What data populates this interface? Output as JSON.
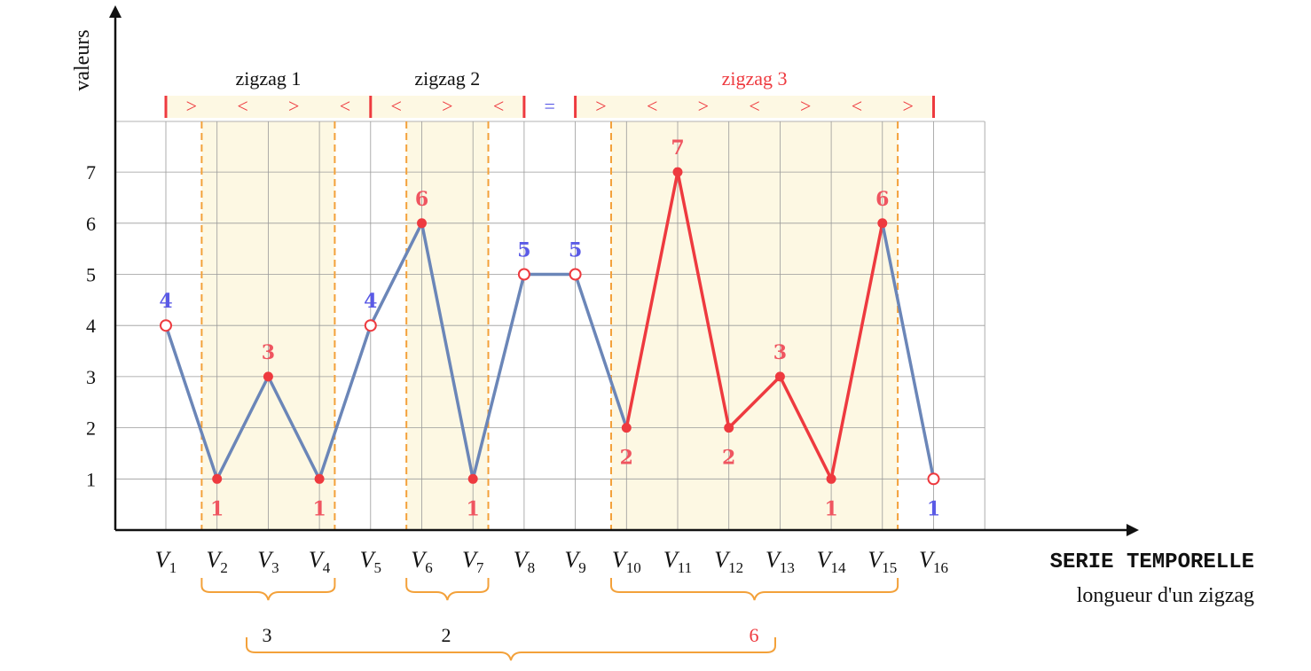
{
  "axis": {
    "y_label": "valeurs",
    "x_label": "SERIE TEMPORELLE",
    "x_sublabel": "longueur d'un zigzag",
    "y_ticks": [
      "1",
      "2",
      "3",
      "4",
      "5",
      "6",
      "7"
    ]
  },
  "colors": {
    "series_blue": "#6b86b8",
    "series_red": "#ee3a3f",
    "value_blue": "#5a5ae6",
    "value_red": "#ef5560",
    "band": "#fdf8e3",
    "dashed": "#f3a13a",
    "brace": "#f3a13a",
    "grid": "#9a9a9a"
  },
  "chart_data": {
    "type": "line",
    "x": [
      "V1",
      "V2",
      "V3",
      "V4",
      "V5",
      "V6",
      "V7",
      "V8",
      "V9",
      "V10",
      "V11",
      "V12",
      "V13",
      "V14",
      "V15",
      "V16"
    ],
    "series": [
      {
        "values": [
          4,
          1,
          3,
          1,
          4,
          6,
          1,
          5,
          5,
          2,
          7,
          2,
          3,
          1,
          6,
          1
        ]
      }
    ],
    "ylim": [
      0,
      7.7
    ],
    "grid": true,
    "value_labels": [
      {
        "index": 0,
        "text": "4",
        "color": "blue",
        "pos": "above"
      },
      {
        "index": 1,
        "text": "1",
        "color": "red",
        "pos": "below"
      },
      {
        "index": 2,
        "text": "3",
        "color": "red",
        "pos": "above"
      },
      {
        "index": 3,
        "text": "1",
        "color": "red",
        "pos": "below"
      },
      {
        "index": 4,
        "text": "4",
        "color": "blue",
        "pos": "above"
      },
      {
        "index": 5,
        "text": "6",
        "color": "red",
        "pos": "above"
      },
      {
        "index": 6,
        "text": "1",
        "color": "red",
        "pos": "below"
      },
      {
        "index": 7,
        "text": "5",
        "color": "blue",
        "pos": "above"
      },
      {
        "index": 8,
        "text": "5",
        "color": "blue",
        "pos": "above"
      },
      {
        "index": 9,
        "text": "2",
        "color": "red",
        "pos": "below"
      },
      {
        "index": 10,
        "text": "7",
        "color": "red",
        "pos": "above"
      },
      {
        "index": 11,
        "text": "2",
        "color": "red",
        "pos": "below"
      },
      {
        "index": 12,
        "text": "3",
        "color": "red",
        "pos": "above"
      },
      {
        "index": 13,
        "text": "1",
        "color": "red",
        "pos": "below"
      },
      {
        "index": 14,
        "text": "6",
        "color": "red",
        "pos": "above"
      },
      {
        "index": 15,
        "text": "1",
        "color": "blue",
        "pos": "below"
      }
    ],
    "open_points": [
      0,
      4,
      7,
      8,
      15
    ],
    "red_segment": [
      9,
      14
    ],
    "zigzags": [
      {
        "name": "zigzag 1",
        "from": 0,
        "to": 4,
        "band_from": 1,
        "band_to": 3,
        "signs": [
          ">",
          "<",
          ">",
          "<"
        ],
        "length": "3",
        "color": "black"
      },
      {
        "name": "zigzag 2",
        "from": 4,
        "to": 7,
        "band_from": 5,
        "band_to": 6,
        "signs": [
          "<",
          ">",
          "<"
        ],
        "length": "2",
        "color": "black"
      },
      {
        "name": "zigzag 3",
        "from": 8,
        "to": 15,
        "band_from": 9,
        "band_to": 14,
        "signs": [
          ">",
          "<",
          ">",
          "<",
          ">",
          "<",
          ">"
        ],
        "length": "6",
        "color": "red"
      }
    ],
    "equal_sign": {
      "from": 7,
      "to": 8,
      "text": "="
    }
  }
}
